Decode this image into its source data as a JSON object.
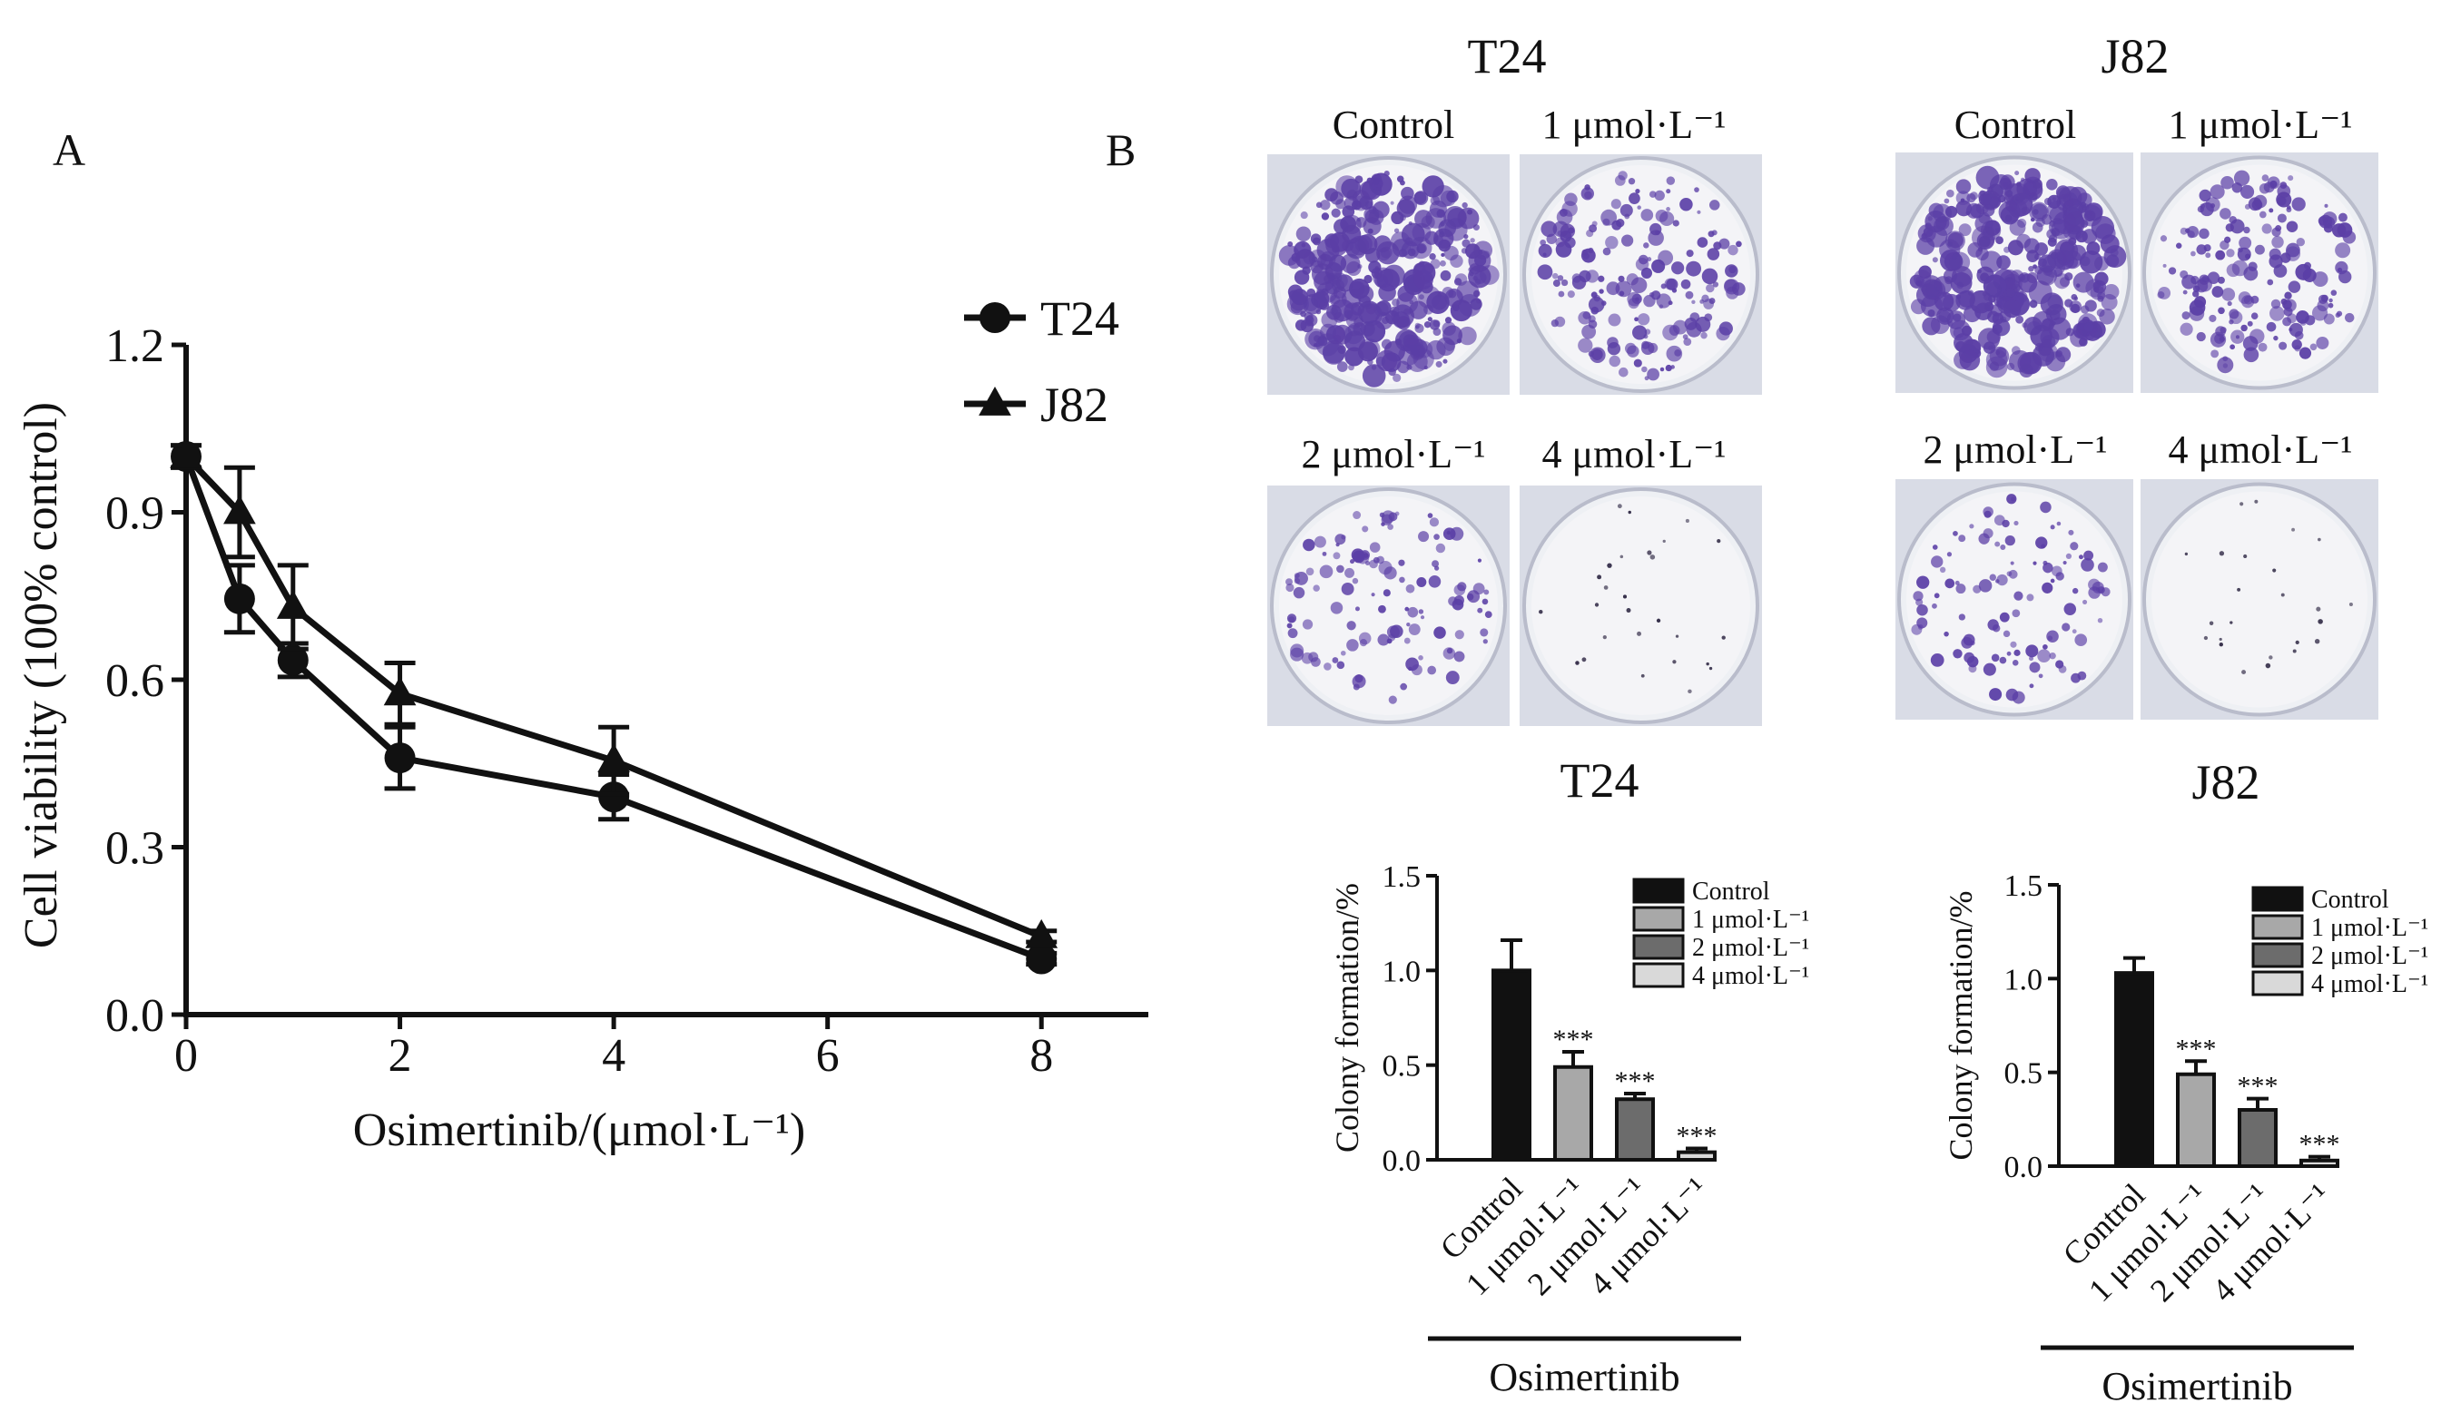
{
  "panel_a": {
    "letter": "A",
    "ylabel": "Cell viability (100% control)",
    "xlabel": "Osimertinib/(μmol·L⁻¹)",
    "legend": [
      "T24",
      "J82"
    ]
  },
  "panel_b": {
    "letter": "B",
    "plates": [
      {
        "cell_line": "T24",
        "labels": [
          "Control",
          "1 μmol·L⁻¹",
          "2 μmol·L⁻¹",
          "4 μmol·L⁻¹"
        ],
        "colony_density": [
          1.0,
          0.5,
          0.33,
          0.04
        ]
      },
      {
        "cell_line": "J82",
        "labels": [
          "Control",
          "1 μmol·L⁻¹",
          "2 μmol·L⁻¹",
          "4 μmol·L⁻¹"
        ],
        "colony_density": [
          1.0,
          0.5,
          0.3,
          0.03
        ]
      }
    ],
    "bar_titles": [
      "T24",
      "J82"
    ],
    "group_label": "Osimertinib"
  },
  "colors": {
    "ink": "#111111",
    "plate_bg": "#d9dce6",
    "colony": "#5b3fa6",
    "bar_fills": [
      "#111111",
      "#a8a8a8",
      "#6c6c6c",
      "#d9d9d9"
    ]
  },
  "chart_data": [
    {
      "type": "line",
      "xlabel": "Osimertinib/(μmol·L⁻¹)",
      "ylabel": "Cell viability (100% control)",
      "xlim": [
        0,
        9
      ],
      "ylim": [
        0,
        1.2
      ],
      "xticks": [
        0,
        2,
        4,
        6,
        8
      ],
      "yticks": [
        0.0,
        0.3,
        0.6,
        0.9,
        1.2
      ],
      "legend_position": "top-right",
      "grid": false,
      "series": [
        {
          "name": "T24",
          "marker": "circle",
          "x": [
            0,
            0.5,
            1,
            2,
            4,
            8
          ],
          "y": [
            1.0,
            0.745,
            0.635,
            0.46,
            0.39,
            0.1
          ],
          "err": [
            0.02,
            0.06,
            0.03,
            0.055,
            0.04,
            0.01
          ]
        },
        {
          "name": "J82",
          "marker": "triangle",
          "x": [
            0,
            0.5,
            1,
            2,
            4,
            8
          ],
          "y": [
            1.0,
            0.9,
            0.73,
            0.575,
            0.455,
            0.14
          ],
          "err": [
            0.02,
            0.08,
            0.075,
            0.055,
            0.06,
            0.01
          ]
        }
      ]
    },
    {
      "type": "bar",
      "title": "T24",
      "ylabel": "Colony formation/%",
      "ylim": [
        0,
        1.5
      ],
      "yticks": [
        0.0,
        0.5,
        1.0,
        1.5
      ],
      "categories": [
        "Control",
        "1 μmol·L⁻¹",
        "2 μmol·L⁻¹",
        "4 μmol·L⁻¹"
      ],
      "values": [
        1.0,
        0.49,
        0.32,
        0.04
      ],
      "err": [
        0.16,
        0.08,
        0.03,
        0.02
      ],
      "significance": [
        "",
        "***",
        "***",
        "***"
      ],
      "legend": [
        "Control",
        "1 μmol·L⁻¹",
        "2 μmol·L⁻¹",
        "4 μmol·L⁻¹"
      ],
      "legend_position": "top-right",
      "group_label": "Osimertinib"
    },
    {
      "type": "bar",
      "title": "J82",
      "ylabel": "Colony formation/%",
      "ylim": [
        0,
        1.5
      ],
      "yticks": [
        0.0,
        0.5,
        1.0,
        1.5
      ],
      "categories": [
        "Control",
        "1 μmol·L⁻¹",
        "2 μmol·L⁻¹",
        "4 μmol·L⁻¹"
      ],
      "values": [
        1.03,
        0.49,
        0.3,
        0.03
      ],
      "err": [
        0.08,
        0.07,
        0.06,
        0.02
      ],
      "significance": [
        "",
        "***",
        "***",
        "***"
      ],
      "legend": [
        "Control",
        "1 μmol·L⁻¹",
        "2 μmol·L⁻¹",
        "4 μmol·L⁻¹"
      ],
      "legend_position": "top-right",
      "group_label": "Osimertinib"
    }
  ]
}
